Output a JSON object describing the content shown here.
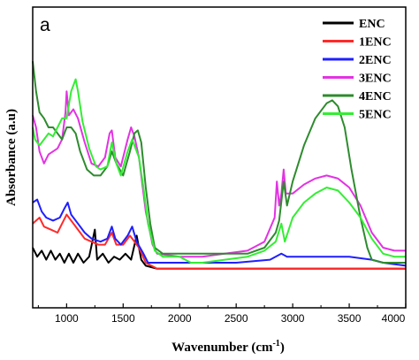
{
  "chart_data": {
    "type": "line",
    "panel_label": "a",
    "xlabel": "Wavenumber (cm",
    "xlabel_sup": "-1",
    "xlabel_tail": ")",
    "ylabel": "Absorbance (a.u)",
    "xlim": [
      700,
      4000
    ],
    "ylim": [
      0,
      1
    ],
    "x_ticks": [
      1000,
      1500,
      2000,
      2500,
      3000,
      3500,
      4000
    ],
    "y_ticks_shown": false,
    "grid": false,
    "legend_position": "top-right",
    "series": [
      {
        "name": "ENC",
        "color": "#000000",
        "points": [
          [
            700,
            0.2
          ],
          [
            740,
            0.17
          ],
          [
            780,
            0.19
          ],
          [
            820,
            0.16
          ],
          [
            860,
            0.19
          ],
          [
            900,
            0.16
          ],
          [
            940,
            0.18
          ],
          [
            980,
            0.15
          ],
          [
            1020,
            0.18
          ],
          [
            1060,
            0.15
          ],
          [
            1100,
            0.18
          ],
          [
            1150,
            0.15
          ],
          [
            1200,
            0.17
          ],
          [
            1250,
            0.26
          ],
          [
            1270,
            0.16
          ],
          [
            1320,
            0.18
          ],
          [
            1370,
            0.15
          ],
          [
            1420,
            0.17
          ],
          [
            1470,
            0.16
          ],
          [
            1520,
            0.18
          ],
          [
            1570,
            0.16
          ],
          [
            1620,
            0.24
          ],
          [
            1660,
            0.16
          ],
          [
            1700,
            0.14
          ],
          [
            1800,
            0.13
          ],
          [
            2000,
            0.13
          ],
          [
            2200,
            0.13
          ],
          [
            2500,
            0.13
          ],
          [
            2800,
            0.13
          ],
          [
            3000,
            0.13
          ],
          [
            3300,
            0.13
          ],
          [
            3600,
            0.13
          ],
          [
            4000,
            0.13
          ]
        ]
      },
      {
        "name": "1ENC",
        "color": "#ff2a2a",
        "points": [
          [
            700,
            0.28
          ],
          [
            760,
            0.3
          ],
          [
            800,
            0.27
          ],
          [
            860,
            0.26
          ],
          [
            920,
            0.25
          ],
          [
            960,
            0.28
          ],
          [
            1000,
            0.31
          ],
          [
            1040,
            0.29
          ],
          [
            1100,
            0.26
          ],
          [
            1160,
            0.23
          ],
          [
            1220,
            0.22
          ],
          [
            1280,
            0.21
          ],
          [
            1340,
            0.21
          ],
          [
            1400,
            0.25
          ],
          [
            1440,
            0.21
          ],
          [
            1500,
            0.21
          ],
          [
            1560,
            0.24
          ],
          [
            1600,
            0.22
          ],
          [
            1640,
            0.2
          ],
          [
            1700,
            0.15
          ],
          [
            1800,
            0.13
          ],
          [
            2000,
            0.13
          ],
          [
            2500,
            0.13
          ],
          [
            3000,
            0.13
          ],
          [
            3500,
            0.13
          ],
          [
            4000,
            0.13
          ]
        ]
      },
      {
        "name": "2ENC",
        "color": "#1f1fff",
        "points": [
          [
            700,
            0.35
          ],
          [
            740,
            0.36
          ],
          [
            780,
            0.32
          ],
          [
            820,
            0.3
          ],
          [
            880,
            0.29
          ],
          [
            940,
            0.3
          ],
          [
            980,
            0.33
          ],
          [
            1010,
            0.35
          ],
          [
            1040,
            0.31
          ],
          [
            1100,
            0.28
          ],
          [
            1160,
            0.25
          ],
          [
            1220,
            0.23
          ],
          [
            1300,
            0.22
          ],
          [
            1360,
            0.23
          ],
          [
            1400,
            0.27
          ],
          [
            1430,
            0.23
          ],
          [
            1480,
            0.21
          ],
          [
            1540,
            0.24
          ],
          [
            1580,
            0.27
          ],
          [
            1620,
            0.22
          ],
          [
            1680,
            0.18
          ],
          [
            1720,
            0.15
          ],
          [
            1800,
            0.15
          ],
          [
            2000,
            0.15
          ],
          [
            2200,
            0.15
          ],
          [
            2500,
            0.15
          ],
          [
            2800,
            0.16
          ],
          [
            2900,
            0.18
          ],
          [
            2950,
            0.17
          ],
          [
            3100,
            0.17
          ],
          [
            3300,
            0.17
          ],
          [
            3500,
            0.17
          ],
          [
            3700,
            0.16
          ],
          [
            3800,
            0.15
          ],
          [
            4000,
            0.14
          ]
        ]
      },
      {
        "name": "3ENC",
        "color": "#e233e2",
        "points": [
          [
            700,
            0.64
          ],
          [
            730,
            0.6
          ],
          [
            760,
            0.52
          ],
          [
            800,
            0.48
          ],
          [
            840,
            0.51
          ],
          [
            880,
            0.52
          ],
          [
            920,
            0.53
          ],
          [
            960,
            0.56
          ],
          [
            990,
            0.65
          ],
          [
            1000,
            0.72
          ],
          [
            1020,
            0.64
          ],
          [
            1060,
            0.66
          ],
          [
            1100,
            0.63
          ],
          [
            1160,
            0.55
          ],
          [
            1220,
            0.48
          ],
          [
            1280,
            0.47
          ],
          [
            1340,
            0.5
          ],
          [
            1380,
            0.58
          ],
          [
            1400,
            0.59
          ],
          [
            1430,
            0.5
          ],
          [
            1480,
            0.47
          ],
          [
            1540,
            0.56
          ],
          [
            1570,
            0.6
          ],
          [
            1600,
            0.57
          ],
          [
            1640,
            0.5
          ],
          [
            1700,
            0.32
          ],
          [
            1760,
            0.21
          ],
          [
            1800,
            0.18
          ],
          [
            2000,
            0.17
          ],
          [
            2200,
            0.17
          ],
          [
            2400,
            0.18
          ],
          [
            2600,
            0.19
          ],
          [
            2750,
            0.22
          ],
          [
            2840,
            0.3
          ],
          [
            2860,
            0.42
          ],
          [
            2880,
            0.34
          ],
          [
            2900,
            0.38
          ],
          [
            2920,
            0.46
          ],
          [
            2940,
            0.38
          ],
          [
            3000,
            0.38
          ],
          [
            3100,
            0.41
          ],
          [
            3200,
            0.43
          ],
          [
            3300,
            0.44
          ],
          [
            3400,
            0.43
          ],
          [
            3500,
            0.4
          ],
          [
            3600,
            0.34
          ],
          [
            3700,
            0.25
          ],
          [
            3800,
            0.2
          ],
          [
            3900,
            0.19
          ],
          [
            4000,
            0.19
          ]
        ]
      },
      {
        "name": "4ENC",
        "color": "#2e8b2e",
        "points": [
          [
            700,
            0.82
          ],
          [
            730,
            0.72
          ],
          [
            760,
            0.65
          ],
          [
            800,
            0.63
          ],
          [
            840,
            0.6
          ],
          [
            880,
            0.6
          ],
          [
            920,
            0.58
          ],
          [
            960,
            0.56
          ],
          [
            1000,
            0.6
          ],
          [
            1040,
            0.6
          ],
          [
            1080,
            0.58
          ],
          [
            1120,
            0.52
          ],
          [
            1180,
            0.46
          ],
          [
            1240,
            0.44
          ],
          [
            1300,
            0.44
          ],
          [
            1360,
            0.47
          ],
          [
            1400,
            0.52
          ],
          [
            1440,
            0.48
          ],
          [
            1500,
            0.44
          ],
          [
            1560,
            0.52
          ],
          [
            1600,
            0.58
          ],
          [
            1630,
            0.59
          ],
          [
            1660,
            0.55
          ],
          [
            1700,
            0.4
          ],
          [
            1740,
            0.28
          ],
          [
            1780,
            0.2
          ],
          [
            1850,
            0.18
          ],
          [
            2000,
            0.18
          ],
          [
            2200,
            0.18
          ],
          [
            2400,
            0.18
          ],
          [
            2600,
            0.18
          ],
          [
            2750,
            0.2
          ],
          [
            2850,
            0.25
          ],
          [
            2880,
            0.29
          ],
          [
            2920,
            0.42
          ],
          [
            2950,
            0.34
          ],
          [
            3000,
            0.42
          ],
          [
            3100,
            0.54
          ],
          [
            3200,
            0.63
          ],
          [
            3300,
            0.68
          ],
          [
            3350,
            0.69
          ],
          [
            3400,
            0.67
          ],
          [
            3460,
            0.6
          ],
          [
            3520,
            0.46
          ],
          [
            3600,
            0.3
          ],
          [
            3660,
            0.2
          ],
          [
            3700,
            0.16
          ],
          [
            3800,
            0.15
          ],
          [
            4000,
            0.15
          ]
        ]
      },
      {
        "name": "5ENC",
        "color": "#33ee33",
        "points": [
          [
            700,
            0.6
          ],
          [
            720,
            0.56
          ],
          [
            760,
            0.54
          ],
          [
            800,
            0.56
          ],
          [
            840,
            0.58
          ],
          [
            880,
            0.57
          ],
          [
            920,
            0.6
          ],
          [
            960,
            0.63
          ],
          [
            1000,
            0.63
          ],
          [
            1040,
            0.72
          ],
          [
            1080,
            0.76
          ],
          [
            1100,
            0.72
          ],
          [
            1140,
            0.62
          ],
          [
            1200,
            0.53
          ],
          [
            1260,
            0.47
          ],
          [
            1300,
            0.46
          ],
          [
            1360,
            0.47
          ],
          [
            1400,
            0.55
          ],
          [
            1440,
            0.48
          ],
          [
            1480,
            0.44
          ],
          [
            1540,
            0.52
          ],
          [
            1580,
            0.56
          ],
          [
            1600,
            0.54
          ],
          [
            1640,
            0.5
          ],
          [
            1680,
            0.4
          ],
          [
            1720,
            0.28
          ],
          [
            1780,
            0.19
          ],
          [
            1850,
            0.17
          ],
          [
            2000,
            0.17
          ],
          [
            2100,
            0.15
          ],
          [
            2200,
            0.15
          ],
          [
            2400,
            0.16
          ],
          [
            2600,
            0.17
          ],
          [
            2750,
            0.19
          ],
          [
            2850,
            0.22
          ],
          [
            2900,
            0.28
          ],
          [
            2930,
            0.22
          ],
          [
            3000,
            0.3
          ],
          [
            3100,
            0.35
          ],
          [
            3200,
            0.38
          ],
          [
            3300,
            0.4
          ],
          [
            3400,
            0.39
          ],
          [
            3500,
            0.35
          ],
          [
            3600,
            0.3
          ],
          [
            3700,
            0.23
          ],
          [
            3800,
            0.18
          ],
          [
            3900,
            0.17
          ],
          [
            4000,
            0.17
          ]
        ]
      }
    ]
  }
}
